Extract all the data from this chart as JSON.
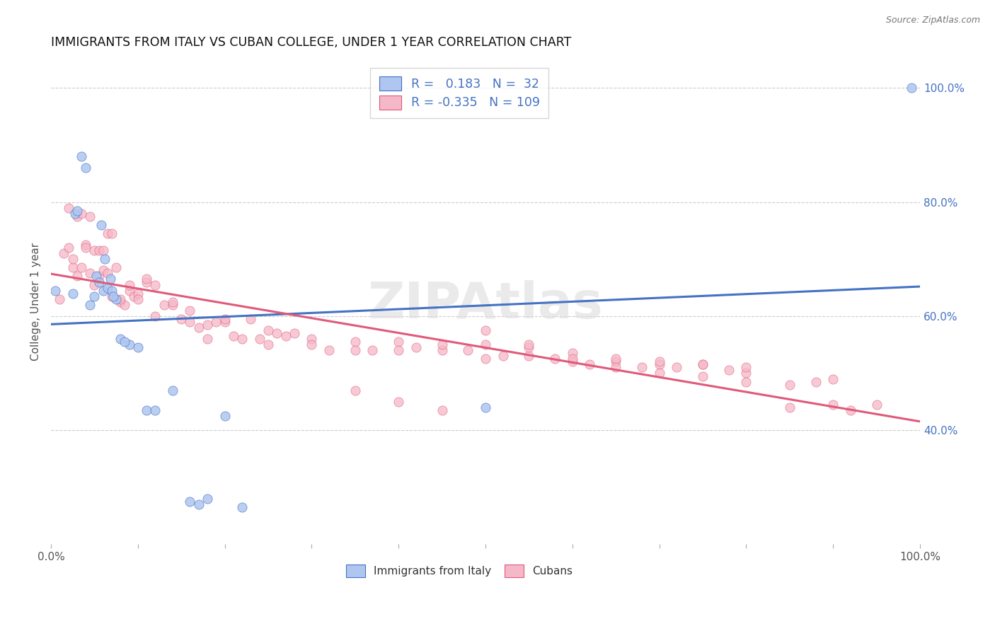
{
  "title": "IMMIGRANTS FROM ITALY VS CUBAN COLLEGE, UNDER 1 YEAR CORRELATION CHART",
  "source": "Source: ZipAtlas.com",
  "ylabel": "College, Under 1 year",
  "legend_italy": "Immigrants from Italy",
  "legend_cubans": "Cubans",
  "r_italy": "0.183",
  "n_italy": "32",
  "r_cubans": "-0.335",
  "n_cubans": "109",
  "italy_color": "#aec6f0",
  "cubans_color": "#f5b8c8",
  "italy_line_color": "#4472c4",
  "cubans_line_color": "#e05a7a",
  "watermark": "ZIPAtlas",
  "xlim": [
    0,
    100
  ],
  "ylim": [
    20,
    105
  ],
  "right_yticks": [
    40,
    60,
    80,
    100
  ],
  "right_yticklabels": [
    "40.0%",
    "60.0%",
    "80.0%",
    "100.0%"
  ],
  "xtick_positions": [
    0,
    10,
    20,
    30,
    40,
    50,
    60,
    70,
    80,
    90,
    100
  ],
  "italy_x": [
    0.5,
    3.5,
    4.0,
    4.5,
    5.0,
    5.2,
    5.5,
    5.8,
    6.0,
    6.2,
    6.5,
    7.0,
    7.5,
    8.0,
    9.0,
    10.0,
    11.0,
    12.0,
    14.0,
    16.0,
    17.0,
    18.0,
    20.0,
    22.0,
    99.0,
    2.5,
    2.8,
    3.0,
    6.8,
    7.2,
    8.5,
    50.0
  ],
  "italy_y": [
    64.5,
    88.0,
    86.0,
    62.0,
    63.5,
    67.0,
    66.0,
    76.0,
    64.5,
    70.0,
    65.0,
    64.5,
    63.0,
    56.0,
    55.0,
    54.5,
    43.5,
    43.5,
    47.0,
    27.5,
    27.0,
    28.0,
    42.5,
    26.5,
    100.0,
    64.0,
    78.0,
    78.5,
    66.5,
    63.5,
    55.5,
    44.0
  ],
  "cubans_x": [
    1.0,
    1.5,
    2.0,
    2.5,
    3.0,
    3.5,
    4.0,
    4.5,
    5.0,
    5.5,
    6.0,
    6.5,
    7.0,
    7.5,
    8.0,
    8.5,
    9.0,
    9.5,
    10.0,
    11.0,
    12.0,
    13.0,
    14.0,
    15.0,
    16.0,
    17.0,
    18.0,
    19.0,
    20.0,
    21.0,
    22.0,
    23.0,
    24.0,
    25.0,
    26.0,
    27.0,
    28.0,
    30.0,
    32.0,
    35.0,
    37.0,
    40.0,
    42.0,
    45.0,
    48.0,
    50.0,
    52.0,
    55.0,
    58.0,
    60.0,
    62.0,
    65.0,
    68.0,
    70.0,
    72.0,
    75.0,
    78.0,
    80.0,
    3.0,
    3.5,
    4.0,
    4.5,
    5.0,
    5.5,
    6.0,
    6.5,
    7.0,
    2.0,
    2.5,
    8.0,
    9.0,
    10.0,
    11.0,
    12.0,
    14.0,
    16.0,
    18.0,
    20.0,
    25.0,
    30.0,
    35.0,
    40.0,
    45.0,
    50.0,
    55.0,
    60.0,
    65.0,
    70.0,
    75.0,
    80.0,
    85.0,
    88.0,
    90.0,
    85.0,
    90.0,
    92.0,
    95.0,
    50.0,
    55.0,
    60.0,
    65.0,
    70.0,
    75.0,
    80.0,
    35.0,
    40.0,
    45.0
  ],
  "cubans_y": [
    63.0,
    71.0,
    79.0,
    68.5,
    67.0,
    68.5,
    72.5,
    67.5,
    65.5,
    67.0,
    68.0,
    67.5,
    63.5,
    68.5,
    62.5,
    62.0,
    64.5,
    63.5,
    64.0,
    66.0,
    65.5,
    62.0,
    62.0,
    59.5,
    61.0,
    58.0,
    56.0,
    59.0,
    59.0,
    56.5,
    56.0,
    59.5,
    56.0,
    55.0,
    57.0,
    56.5,
    57.0,
    56.0,
    54.0,
    55.5,
    54.0,
    55.5,
    54.5,
    54.0,
    54.0,
    52.5,
    53.0,
    53.0,
    52.5,
    52.0,
    51.5,
    52.0,
    51.0,
    51.5,
    51.0,
    51.5,
    50.5,
    50.0,
    77.5,
    78.0,
    72.0,
    77.5,
    71.5,
    71.5,
    71.5,
    74.5,
    74.5,
    72.0,
    70.0,
    63.0,
    65.5,
    63.0,
    66.5,
    60.0,
    62.5,
    59.0,
    58.5,
    59.5,
    57.5,
    55.0,
    54.0,
    54.0,
    55.0,
    55.0,
    54.5,
    53.5,
    52.5,
    52.0,
    51.5,
    51.0,
    48.0,
    48.5,
    49.0,
    44.0,
    44.5,
    43.5,
    44.5,
    57.5,
    55.0,
    52.5,
    51.0,
    50.0,
    49.5,
    48.5,
    47.0,
    45.0,
    43.5
  ]
}
